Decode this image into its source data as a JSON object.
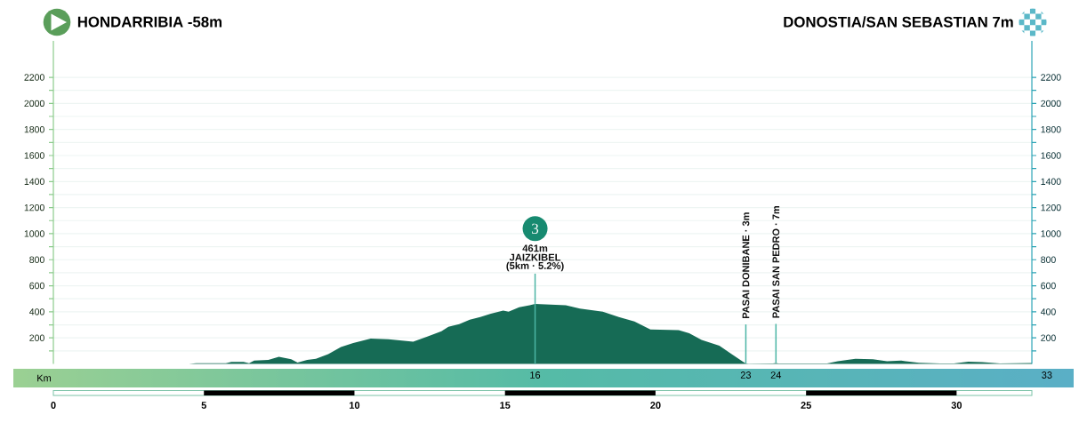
{
  "chart_data": {
    "type": "area",
    "title": "HONDARRIBIA -58m",
    "subtitle": "DONOSTIA/SAN SEBASTIAN 7m",
    "x": [
      0,
      4.5,
      4.74,
      5.73,
      5.91,
      6.32,
      6.5,
      6.67,
      7.14,
      7.49,
      7.9,
      8.11,
      8.43,
      8.72,
      9.13,
      9.55,
      9.96,
      10.31,
      10.54,
      11.13,
      11.95,
      12.42,
      12.89,
      13.12,
      13.48,
      13.83,
      14.18,
      14.53,
      14.94,
      15.12,
      15.47,
      15.82,
      16,
      17.02,
      17.49,
      18.25,
      18.78,
      19.3,
      19.83,
      20.77,
      21.12,
      21.53,
      22.12,
      22.53,
      22.88,
      23,
      23.1,
      23.9,
      24,
      24.08,
      25.7,
      26.05,
      26.64,
      27.22,
      27.69,
      28.16,
      28.75,
      29.45,
      29.91,
      30.39,
      30.86,
      31.44,
      32.5
    ],
    "values": [
      0,
      0,
      5,
      5,
      15,
      15,
      5,
      25,
      30,
      55,
      35,
      10,
      30,
      40,
      75,
      130,
      160,
      180,
      195,
      190,
      170,
      210,
      250,
      285,
      305,
      340,
      360,
      385,
      410,
      400,
      435,
      450,
      461,
      450,
      425,
      400,
      360,
      325,
      265,
      260,
      235,
      185,
      140,
      75,
      20,
      3,
      2,
      3,
      7,
      3,
      3,
      20,
      40,
      35,
      20,
      25,
      8,
      3,
      3,
      17,
      14,
      3,
      7
    ],
    "color": "#166b55",
    "xlim": [
      0,
      32.5
    ],
    "xticks": [
      0,
      5,
      10,
      15,
      20,
      25,
      30
    ],
    "x2label": "Km",
    "x2lim": [
      16,
      33
    ],
    "x2ticks": [
      16,
      23,
      24,
      33
    ],
    "ylim": [
      0,
      2480
    ],
    "yticks": [
      {
        "value": 100,
        "label": null
      },
      200,
      {
        "value": 300,
        "label": null
      },
      400,
      {
        "value": 500,
        "label": null
      },
      600,
      {
        "value": 700,
        "label": null
      },
      800,
      {
        "value": 900,
        "label": null
      },
      1000,
      {
        "value": 1100,
        "label": null
      },
      1200,
      {
        "value": 1300,
        "label": null
      },
      1400,
      {
        "value": 1500,
        "label": null
      },
      1600,
      {
        "value": 1700,
        "label": null
      },
      1800,
      {
        "value": 1900,
        "label": null
      },
      2000,
      {
        "value": 2100,
        "label": null
      },
      2200
    ],
    "y2lim": [
      0,
      2480
    ],
    "y2ticks": [
      {
        "value": 100,
        "label": null
      },
      200,
      {
        "value": 300,
        "label": null
      },
      400,
      {
        "value": 500,
        "label": null
      },
      600,
      {
        "value": 700,
        "label": null
      },
      800,
      {
        "value": 900,
        "label": null
      },
      1000,
      {
        "value": 1100,
        "label": null
      },
      1200,
      {
        "value": 1300,
        "label": null
      },
      1400,
      {
        "value": 1500,
        "label": null
      },
      1600,
      {
        "value": 1700,
        "label": null
      },
      1800,
      {
        "value": 1900,
        "label": null
      },
      2000,
      {
        "value": 2100,
        "label": null
      },
      2200
    ],
    "grid": "y",
    "annotations": [
      "3",
      "461m",
      {
        "text": "JAIZKIBEL",
        "x": 16,
        "y": 461
      },
      {
        "text": "(5km · 5.2%)",
        "x": 16,
        "y": 461
      },
      {
        "text": "PASAI DONIBANE · 3m",
        "x": 23,
        "y": 3
      },
      {
        "text": "PASAI SAN PEDRO · 7m",
        "x": 24,
        "y": 7
      }
    ]
  }
}
